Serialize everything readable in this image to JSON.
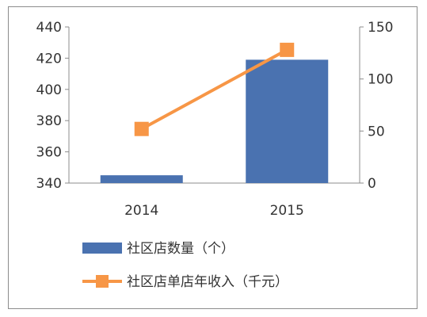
{
  "chart_data": {
    "type": "bar",
    "categories": [
      "2014",
      "2015"
    ],
    "series": [
      {
        "name": "社区店数量（个）",
        "type": "bar",
        "axis": "left",
        "color": "#4a72b0",
        "values": [
          345,
          419
        ]
      },
      {
        "name": "社区店单店年收入（千元）",
        "type": "line",
        "axis": "right",
        "color": "#f79646",
        "values": [
          52,
          128
        ]
      }
    ],
    "y_left": {
      "min": 340,
      "max": 440,
      "ticks": [
        340,
        360,
        380,
        400,
        420,
        440
      ]
    },
    "y_right": {
      "min": 0,
      "max": 150,
      "ticks": [
        0,
        50,
        100,
        150
      ]
    },
    "grid": false,
    "legend_position": "bottom"
  }
}
